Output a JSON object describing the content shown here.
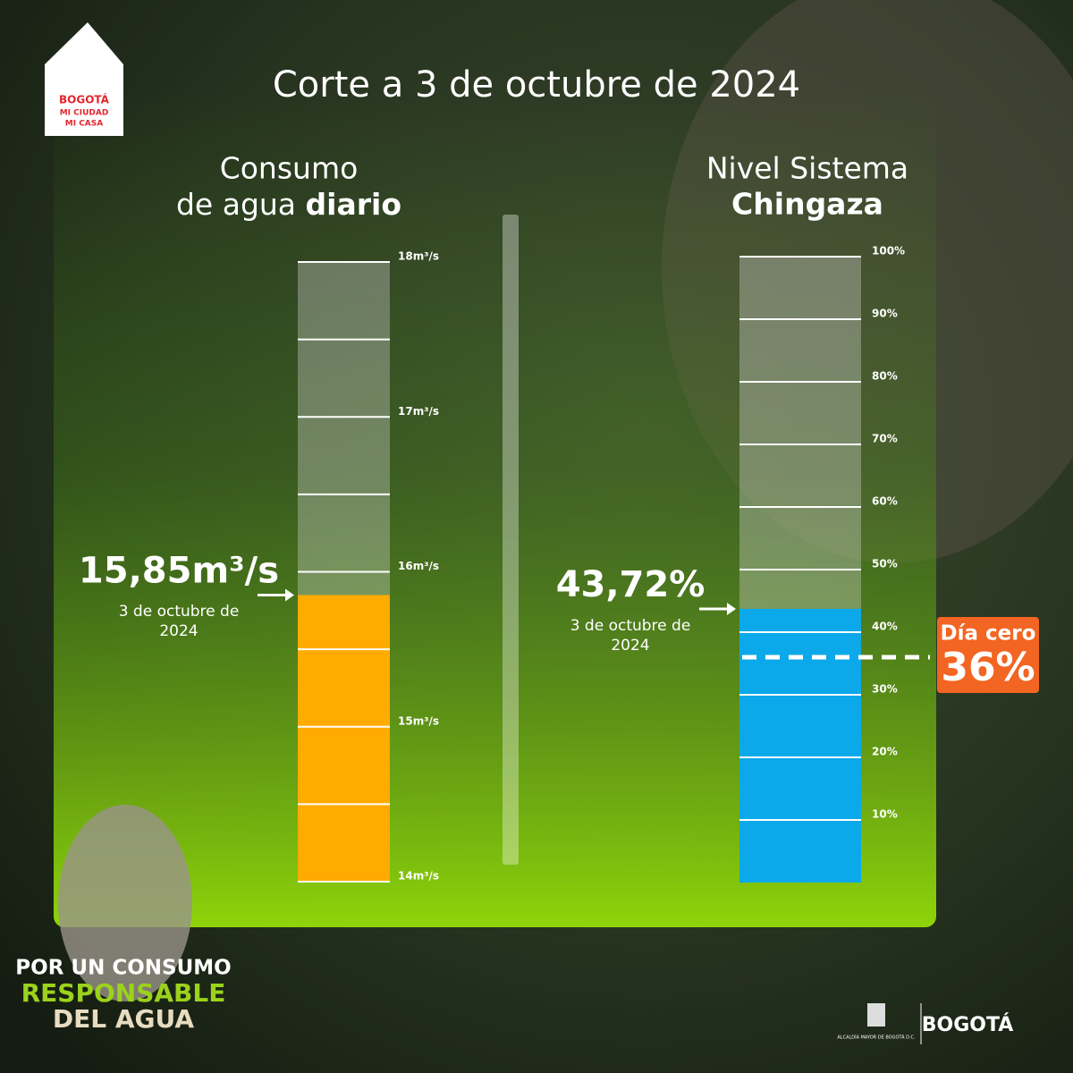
{
  "title": "Corte a 3 de octubre de 2024",
  "logo": {
    "lines": [
      "BOGOTÁ",
      "MI CIUDAD",
      "MI CASA"
    ]
  },
  "chart_data": [
    {
      "type": "bar",
      "title": {
        "line1": "Consumo",
        "line2": "de agua",
        "emphasis": "diario"
      },
      "categories": [
        "3 de octubre de 2024"
      ],
      "values": [
        15.85
      ],
      "value_labels": [
        "15,85m³/s"
      ],
      "color": "#ffab00",
      "ylim": [
        14,
        18
      ],
      "yticks": [
        {
          "value": 14,
          "label": "14m³/s"
        },
        {
          "value": 15,
          "label": "15m³/s"
        },
        {
          "value": 16,
          "label": "16m³/s"
        },
        {
          "value": 17,
          "label": "17m³/s"
        },
        {
          "value": 18,
          "label": "18m³/s"
        }
      ],
      "minor_yticks": [
        14.5,
        15.5,
        16.5,
        17.5
      ],
      "grid": true
    },
    {
      "type": "bar",
      "title": {
        "line1": "Nivel Sistema",
        "emphasis": "Chingaza"
      },
      "categories": [
        "3 de octubre de 2024"
      ],
      "values": [
        43.72
      ],
      "value_labels": [
        "43,72%"
      ],
      "color": "#0ba9ea",
      "ylim": [
        0,
        100
      ],
      "yticks": [
        {
          "value": 10,
          "label": "10%"
        },
        {
          "value": 20,
          "label": "20%"
        },
        {
          "value": 30,
          "label": "30%"
        },
        {
          "value": 40,
          "label": "40%"
        },
        {
          "value": 50,
          "label": "50%"
        },
        {
          "value": 60,
          "label": "60%"
        },
        {
          "value": 70,
          "label": "70%"
        },
        {
          "value": 80,
          "label": "80%"
        },
        {
          "value": 90,
          "label": "90%"
        },
        {
          "value": 100,
          "label": "100%"
        }
      ],
      "grid": true,
      "threshold": {
        "label": "Día cero",
        "value": 36,
        "value_label": "36%",
        "color": "#f26522"
      }
    }
  ],
  "footer": {
    "slogan": [
      "POR UN CONSUMO",
      "RESPONSABLE",
      "DEL AGUA"
    ],
    "seal": "ALCALDÍA MAYOR DE BOGOTÁ D.C.",
    "brand": "BOGOTÁ"
  }
}
